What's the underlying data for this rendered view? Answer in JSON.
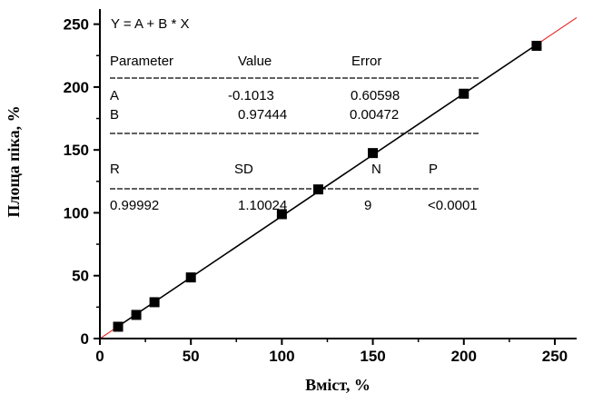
{
  "chart_data": {
    "type": "scatter",
    "title": "",
    "xlabel": "Вміст, %",
    "ylabel": "Площа піка, %",
    "xlim": [
      0,
      262
    ],
    "ylim": [
      0,
      262
    ],
    "xticks": [
      0,
      50,
      100,
      150,
      200,
      250
    ],
    "yticks": [
      0,
      50,
      100,
      150,
      200,
      250
    ],
    "grid": false,
    "series": [
      {
        "x": [
          10,
          20,
          30,
          50,
          100,
          120,
          150,
          200,
          240
        ],
        "y": [
          9.4,
          18.8,
          28.9,
          48.6,
          98.9,
          118.6,
          147.5,
          194.7,
          232.8
        ],
        "marker": "square",
        "color": "#000000"
      }
    ],
    "fit_lines": [
      {
        "intercept": -0.1013,
        "slope": 0.97444,
        "color": "#000000",
        "x_range": [
          10,
          240
        ]
      },
      {
        "intercept": -0.1013,
        "slope": 0.97444,
        "color": "#e8201c",
        "x_range": [
          0,
          262
        ]
      }
    ],
    "fit_box": {
      "equation": "Y = A + B * X",
      "param_header": [
        "Parameter",
        "Value",
        "Error"
      ],
      "params": [
        [
          "A",
          "-0.1013",
          "0.60598"
        ],
        [
          "B",
          "0.97444",
          "0.00472"
        ]
      ],
      "stat_header": [
        "R",
        "SD",
        "N",
        "P"
      ],
      "stats": [
        "0.99992",
        "1.10024",
        "9",
        "<0.0001"
      ]
    }
  }
}
